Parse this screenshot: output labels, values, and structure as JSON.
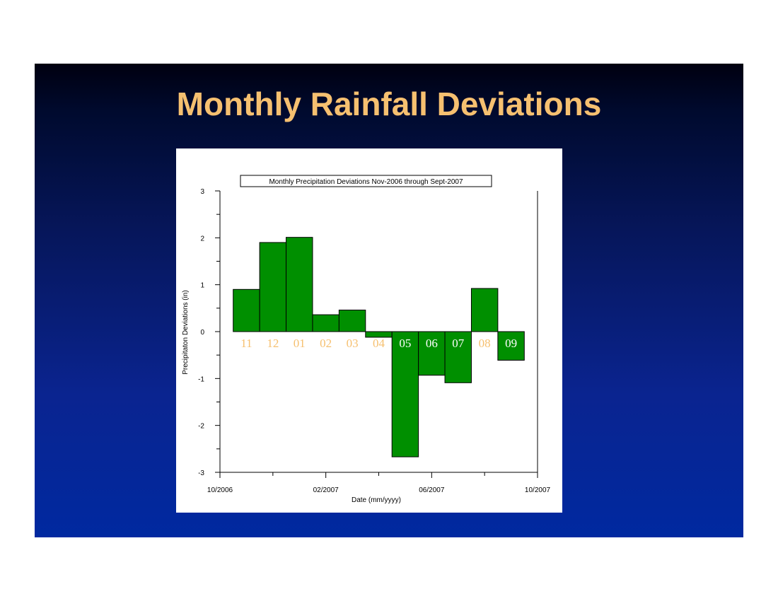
{
  "slide": {
    "title": "Monthly Rainfall Deviations"
  },
  "colors": {
    "bar_fill": "#008f00",
    "bar_stroke": "#000000",
    "title_color": "#f6c070",
    "month_label_color": "#f6c070",
    "month_label_on_bar_color": "#ffffff"
  },
  "chart_data": {
    "type": "bar",
    "title": "Monthly Precipitation Deviations Nov-2006 through Sept-2007",
    "xlabel": "Date (mm/yyyy)",
    "ylabel": "Precipitaton Deviations (in)",
    "ylim": [
      -3,
      3
    ],
    "yticks": [
      "3",
      "2",
      "1",
      "0",
      "-1",
      "-2",
      "-3"
    ],
    "xtick_labels": [
      "10/2006",
      "02/2007",
      "06/2007",
      "10/2007"
    ],
    "categories": [
      "11",
      "12",
      "01",
      "02",
      "03",
      "04",
      "05",
      "06",
      "07",
      "08",
      "09"
    ],
    "values": [
      0.9,
      1.9,
      2.01,
      0.36,
      0.46,
      -0.12,
      -2.67,
      -0.93,
      -1.09,
      0.92,
      -0.61
    ],
    "grid": false,
    "legend": "none"
  }
}
